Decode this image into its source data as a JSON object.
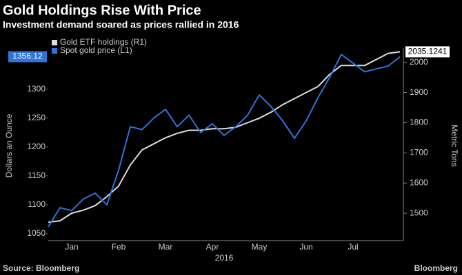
{
  "chart_data": {
    "type": "line",
    "title": "Gold Holdings Rise With Price",
    "subtitle": "Investment demand soared as prices rallied in 2016",
    "ylabel": "Dollars an Ounce",
    "y2label": "Metric Tons",
    "xlabel": "2016",
    "source": "Source: Bloomberg",
    "brand": "Bloomberg",
    "categories": [
      null,
      null,
      "Jan",
      null,
      null,
      null,
      "Feb",
      null,
      null,
      null,
      "Mar",
      null,
      null,
      null,
      "Apr",
      null,
      null,
      null,
      "May",
      null,
      null,
      null,
      "Jun",
      null,
      null,
      null,
      "Jul",
      null,
      null,
      null,
      null
    ],
    "series": [
      {
        "name": "Gold ETF holdings (R1)",
        "color": "#dddddd",
        "axis": "y2",
        "values": [
          1470,
          1475,
          1500,
          1510,
          1525,
          1555,
          1590,
          1660,
          1710,
          1730,
          1750,
          1765,
          1775,
          1775,
          1780,
          1780,
          1785,
          1800,
          1815,
          1835,
          1860,
          1880,
          1900,
          1920,
          1960,
          1990,
          1990,
          1990,
          2010,
          2030,
          2035.1241
        ]
      },
      {
        "name": "Spot gold price (L1)",
        "color": "#2f74d9",
        "values": [
          1062,
          1095,
          1090,
          1110,
          1120,
          1100,
          1160,
          1235,
          1230,
          1250,
          1265,
          1235,
          1255,
          1225,
          1240,
          1220,
          1235,
          1255,
          1290,
          1270,
          1245,
          1215,
          1245,
          1285,
          1320,
          1360,
          1345,
          1330,
          1335,
          1340,
          1356.12
        ]
      }
    ],
    "ylim": [
      1038,
      1365
    ],
    "yticks": [
      1050,
      1100,
      1150,
      1200,
      1250,
      1300
    ],
    "y2lim": [
      1409,
      2036
    ],
    "y2ticks": [
      1500,
      1600,
      1700,
      1800,
      1900,
      2000
    ],
    "grid": false
  }
}
